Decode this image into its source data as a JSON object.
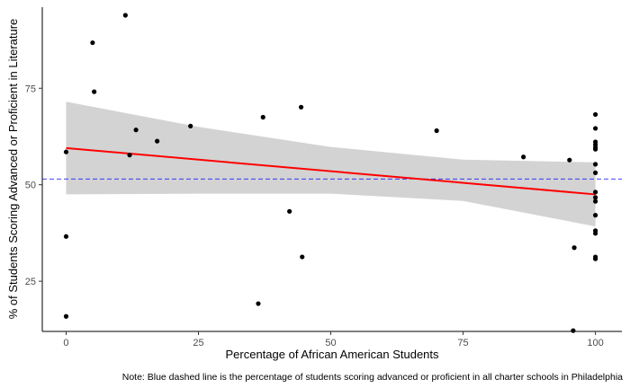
{
  "chart_data": {
    "type": "scatter",
    "title": "",
    "xlabel": "Percentage of African American Students",
    "ylabel": "% of Students Scoring Advanced or Proficient in Literature",
    "caption": "Note: Blue dashed line is the percentage of students scoring advanced or proficient in all charter schools in Philadelphia",
    "xlim": [
      -4.5,
      105
    ],
    "ylim": [
      12,
      96
    ],
    "x_ticks": [
      0,
      25,
      50,
      75,
      100
    ],
    "y_ticks": [
      25,
      50,
      75
    ],
    "grid": false,
    "points": [
      {
        "x": 0,
        "y": 58.5
      },
      {
        "x": 0,
        "y": 36.6
      },
      {
        "x": 0,
        "y": 15.9
      },
      {
        "x": 5,
        "y": 86.8
      },
      {
        "x": 5.3,
        "y": 74.1
      },
      {
        "x": 11.2,
        "y": 93.9
      },
      {
        "x": 12,
        "y": 57.7
      },
      {
        "x": 13.2,
        "y": 64.2
      },
      {
        "x": 17.2,
        "y": 61.3
      },
      {
        "x": 23.5,
        "y": 65.2
      },
      {
        "x": 36.3,
        "y": 19.2
      },
      {
        "x": 37.2,
        "y": 67.5
      },
      {
        "x": 42.2,
        "y": 43.1
      },
      {
        "x": 44.4,
        "y": 70.1
      },
      {
        "x": 44.6,
        "y": 31.3
      },
      {
        "x": 70,
        "y": 64
      },
      {
        "x": 86.4,
        "y": 57.2
      },
      {
        "x": 95.1,
        "y": 56.4
      },
      {
        "x": 95.8,
        "y": 12.2
      },
      {
        "x": 96,
        "y": 33.7
      },
      {
        "x": 100,
        "y": 68.2
      },
      {
        "x": 100,
        "y": 64.6
      },
      {
        "x": 100,
        "y": 61.1
      },
      {
        "x": 100,
        "y": 60.4
      },
      {
        "x": 100,
        "y": 59.7
      },
      {
        "x": 100,
        "y": 59.2
      },
      {
        "x": 100,
        "y": 55.3
      },
      {
        "x": 100,
        "y": 53.1
      },
      {
        "x": 100,
        "y": 48.1
      },
      {
        "x": 100,
        "y": 46.7
      },
      {
        "x": 100,
        "y": 45.7
      },
      {
        "x": 100,
        "y": 42.1
      },
      {
        "x": 100,
        "y": 38.1
      },
      {
        "x": 100,
        "y": 37.4
      },
      {
        "x": 100,
        "y": 31.3
      },
      {
        "x": 100,
        "y": 30.8
      }
    ],
    "trend_line": {
      "x": [
        0,
        100
      ],
      "y": [
        59.5,
        47.5
      ],
      "color": "#ff0000"
    },
    "confidence_band": {
      "x": [
        0,
        25,
        50,
        75,
        100
      ],
      "upper": [
        71.5,
        65,
        59.8,
        56.5,
        55.8
      ],
      "lower": [
        47.5,
        47.7,
        47.7,
        45.8,
        39.2
      ],
      "color": "#d3d3d3"
    },
    "reference_line": {
      "y": 51.5,
      "color": "#0000ff",
      "style": "dashed"
    },
    "point_color": "#000000"
  }
}
